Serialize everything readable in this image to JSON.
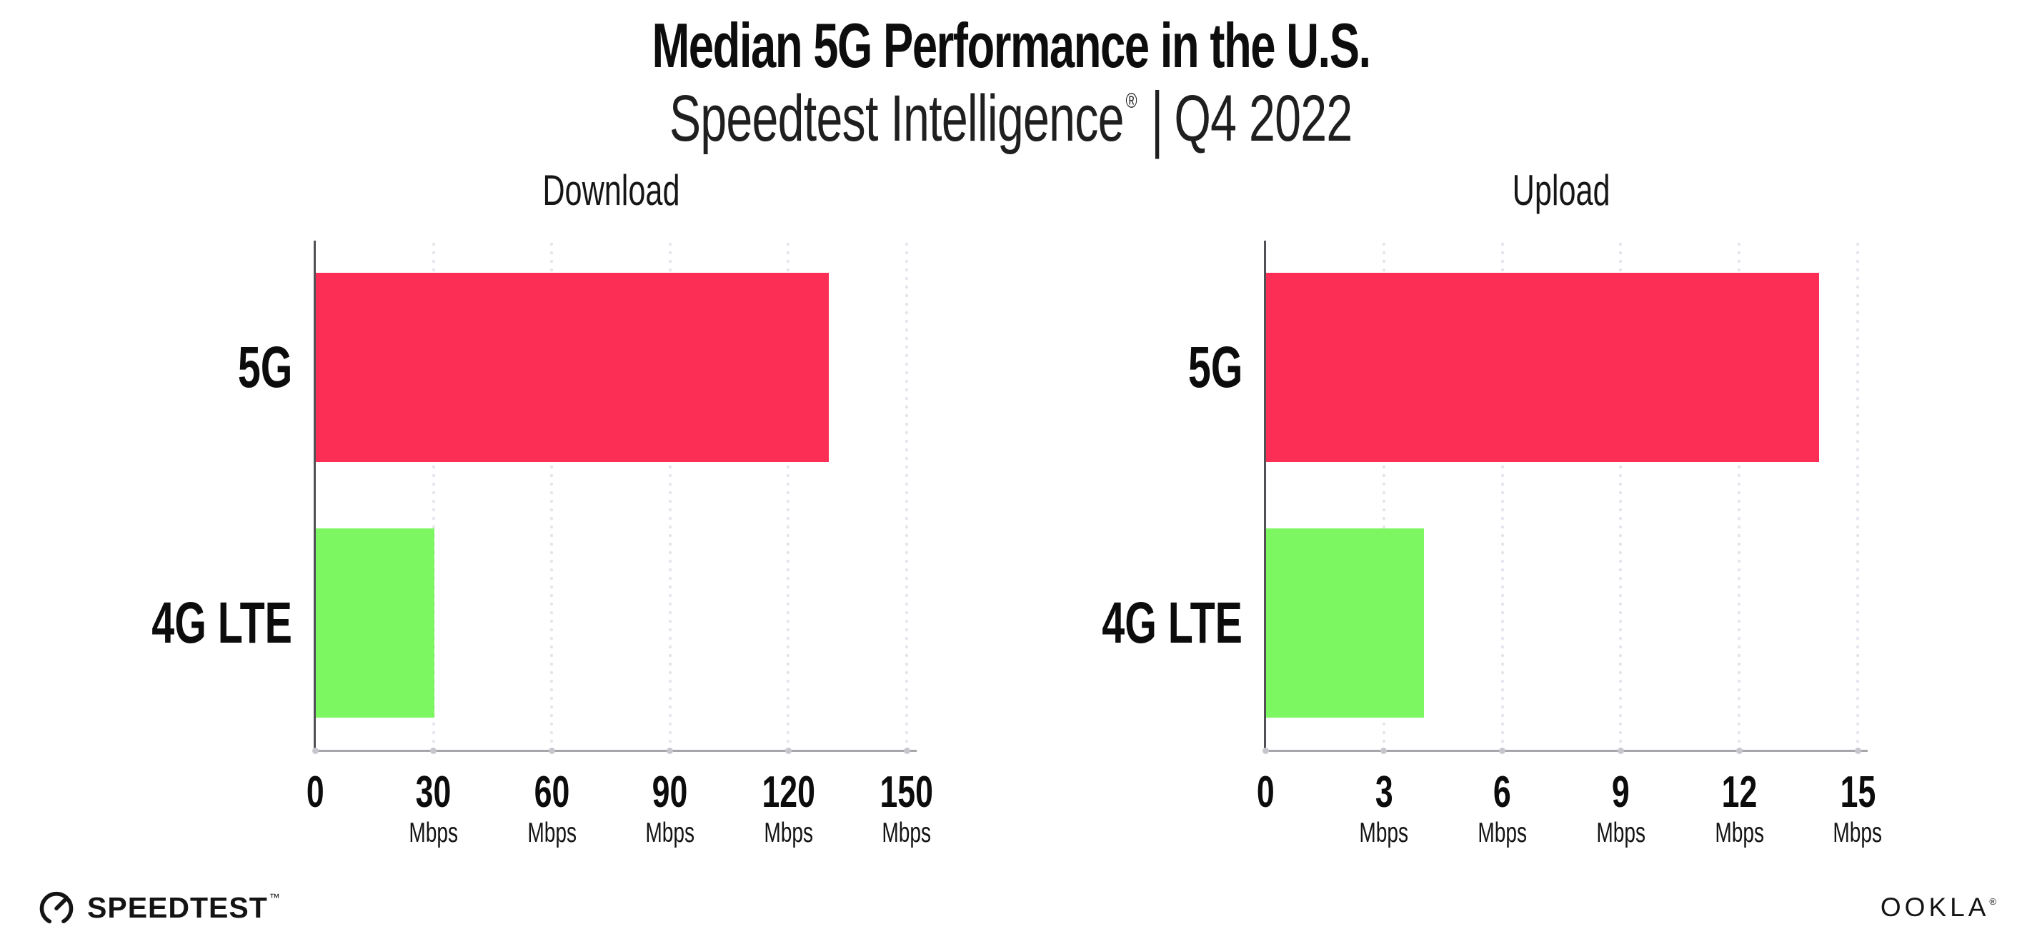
{
  "header": {
    "title": "Median 5G Performance in the U.S.",
    "subtitle_brand": "Speedtest Intelligence",
    "subtitle_registered": "®",
    "subtitle_separator": "|",
    "subtitle_period": "Q4 2022"
  },
  "chart_data": [
    {
      "type": "bar",
      "orientation": "horizontal",
      "title": "Download",
      "categories": [
        "5G",
        "4G LTE"
      ],
      "values": [
        130,
        30
      ],
      "unit": "Mbps",
      "xlim": [
        0,
        150
      ],
      "xticks": [
        0,
        30,
        60,
        90,
        120,
        150
      ],
      "bar_colors": [
        "#fd2e56",
        "#7cf661"
      ],
      "grid": "dotted-vertical",
      "legend": "none"
    },
    {
      "type": "bar",
      "orientation": "horizontal",
      "title": "Upload",
      "categories": [
        "5G",
        "4G LTE"
      ],
      "values": [
        14,
        4
      ],
      "unit": "Mbps",
      "xlim": [
        0,
        15
      ],
      "xticks": [
        0,
        3,
        6,
        9,
        12,
        15
      ],
      "bar_colors": [
        "#fd2e56",
        "#7cf661"
      ],
      "grid": "dotted-vertical",
      "legend": "none"
    }
  ],
  "footer": {
    "speedtest_wordmark": "SPEEDTEST",
    "speedtest_trademark": "™",
    "speedtest_icon": "gauge-icon",
    "ookla_wordmark": "OOKLA",
    "ookla_registered": "®"
  },
  "colors": {
    "bar_5g": "#fd2e56",
    "bar_4g_lte": "#7cf661",
    "text": "#111111",
    "grid_dot": "#e4e4ed",
    "axis_bottom": "#a6a6ab",
    "axis_left": "#515155",
    "tick_dot": "#c6c6ce"
  }
}
